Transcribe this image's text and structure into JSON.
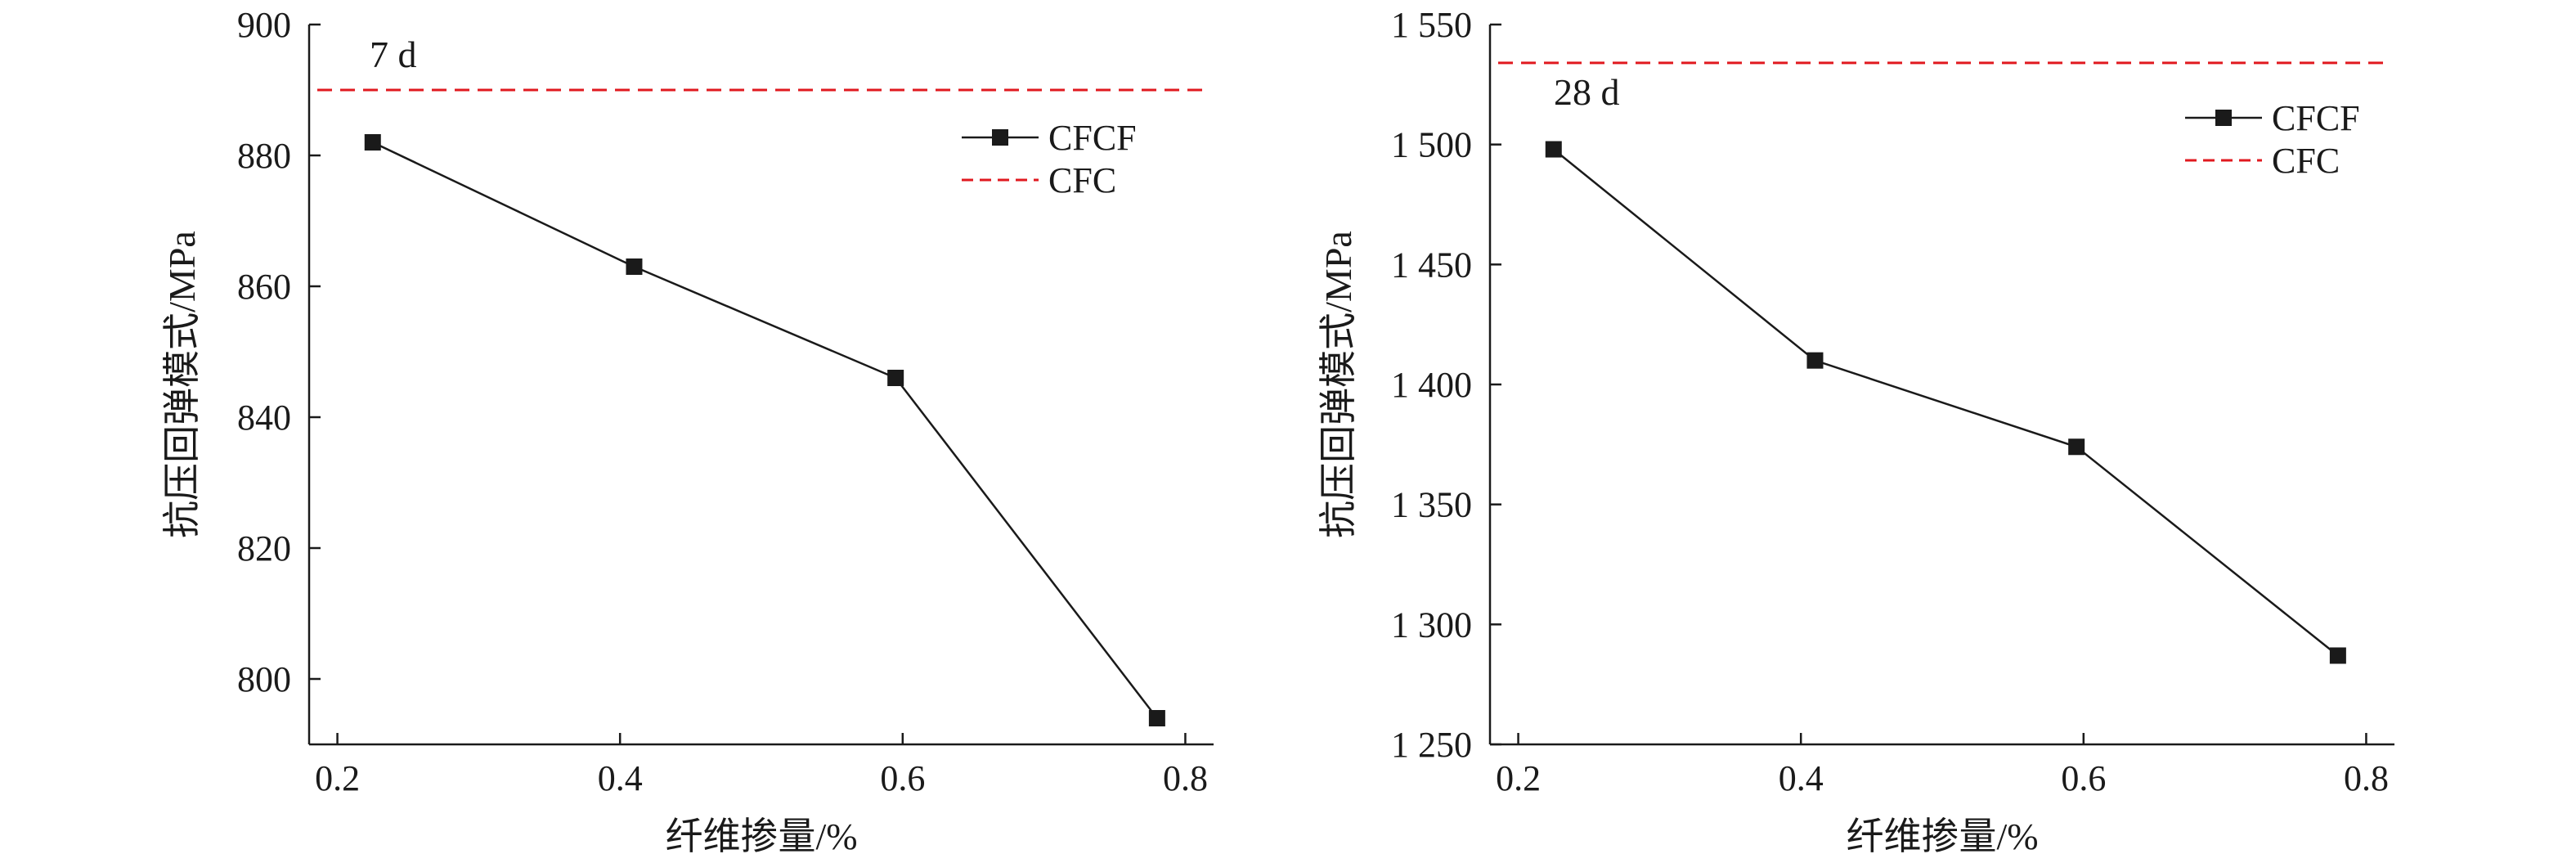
{
  "chart_data": [
    {
      "type": "line",
      "title": "",
      "annotation": "7 d",
      "xlabel": "纤维掺量/%",
      "ylabel": "抗压回弹模式/MPa",
      "xlim": [
        0.18,
        0.82
      ],
      "ylim": [
        790,
        900
      ],
      "xticks": [
        0.2,
        0.4,
        0.6,
        0.8
      ],
      "xtick_labels": [
        "0.2",
        "0.4",
        "0.6",
        "0.8"
      ],
      "yticks": [
        800,
        820,
        840,
        860,
        880,
        900
      ],
      "ytick_labels": [
        "800",
        "820",
        "840",
        "860",
        "880",
        "900"
      ],
      "grid": false,
      "legend_position": "top-right",
      "series": [
        {
          "name": "CFCF",
          "style": "solid-square",
          "color": "#1a1a1a",
          "x": [
            0.225,
            0.41,
            0.595,
            0.78
          ],
          "y": [
            882,
            863,
            846,
            794
          ]
        },
        {
          "name": "CFC",
          "style": "dashed",
          "color": "#e0191f",
          "x": [
            0.18,
            0.82
          ],
          "y": [
            890,
            890
          ]
        }
      ]
    },
    {
      "type": "line",
      "title": "",
      "annotation": "28 d",
      "xlabel": "纤维掺量/%",
      "ylabel": "抗压回弹模式/MPa",
      "xlim": [
        0.18,
        0.82
      ],
      "ylim": [
        1250,
        1550
      ],
      "xticks": [
        0.2,
        0.4,
        0.6,
        0.8
      ],
      "xtick_labels": [
        "0.2",
        "0.4",
        "0.6",
        "0.8"
      ],
      "yticks": [
        1250,
        1300,
        1350,
        1400,
        1450,
        1500,
        1550
      ],
      "ytick_labels": [
        "1 250",
        "1 300",
        "1 350",
        "1 400",
        "1 450",
        "1 500",
        "1 550"
      ],
      "grid": false,
      "legend_position": "top-right",
      "series": [
        {
          "name": "CFCF",
          "style": "solid-square",
          "color": "#1a1a1a",
          "x": [
            0.225,
            0.41,
            0.595,
            0.78
          ],
          "y": [
            1498,
            1410,
            1374,
            1287
          ]
        },
        {
          "name": "CFC",
          "style": "dashed",
          "color": "#e0191f",
          "x": [
            0.18,
            0.82
          ],
          "y": [
            1534,
            1534
          ]
        }
      ]
    }
  ]
}
